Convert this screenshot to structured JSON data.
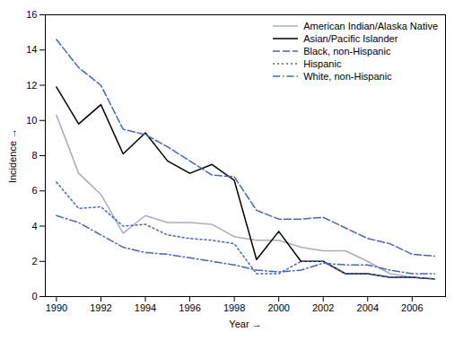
{
  "chart_data": {
    "type": "line",
    "x": [
      1990,
      1991,
      1992,
      1993,
      1994,
      1995,
      1996,
      1997,
      1998,
      1999,
      2000,
      2001,
      2002,
      2003,
      2004,
      2005,
      2006,
      2007
    ],
    "series": [
      {
        "name": "American Indian/Alaska Native",
        "color": "#aaaacc",
        "line_style": "solid",
        "values": [
          10.3,
          7.0,
          5.8,
          3.6,
          4.6,
          4.2,
          4.2,
          4.1,
          3.4,
          3.2,
          3.2,
          2.8,
          2.6,
          2.6,
          2.0,
          1.3,
          1.1,
          1.0
        ]
      },
      {
        "name": "Asian/Pacific Islander",
        "color": "#000000",
        "line_style": "solid",
        "values": [
          11.9,
          9.8,
          10.9,
          8.1,
          9.3,
          7.7,
          7.0,
          7.5,
          6.6,
          2.1,
          3.7,
          2.0,
          2.0,
          1.3,
          1.3,
          1.1,
          1.1,
          1.0
        ]
      },
      {
        "name": "Black, non-Hispanic",
        "color": "#4466bb",
        "line_style": "dashed",
        "values": [
          14.6,
          13.0,
          12.0,
          9.5,
          9.2,
          8.5,
          7.7,
          6.9,
          6.8,
          4.9,
          4.4,
          4.4,
          4.5,
          3.9,
          3.3,
          3.0,
          2.4,
          2.3
        ]
      },
      {
        "name": "Hispanic",
        "color": "#4466bb",
        "line_style": "dotted",
        "values": [
          6.5,
          5.0,
          5.1,
          4.0,
          4.1,
          3.5,
          3.3,
          3.2,
          3.0,
          1.3,
          1.3,
          2.0,
          2.0,
          1.3,
          1.3,
          1.1,
          1.1,
          1.0
        ]
      },
      {
        "name": "White, non-Hispanic",
        "color": "#4466bb",
        "line_style": "dashdot",
        "values": [
          4.6,
          4.2,
          3.5,
          2.8,
          2.5,
          2.4,
          2.2,
          2.0,
          1.8,
          1.5,
          1.4,
          1.5,
          1.9,
          1.8,
          1.8,
          1.5,
          1.3,
          1.3
        ]
      }
    ],
    "xlabel": "Year",
    "ylabel": "Incidence",
    "xlim": [
      1989.5,
      2007.5
    ],
    "ylim": [
      0,
      16
    ],
    "xticks": [
      1990,
      1992,
      1994,
      1996,
      1998,
      2000,
      2002,
      2004,
      2006
    ],
    "yticks": [
      0,
      2,
      4,
      6,
      8,
      10,
      12,
      14,
      16
    ],
    "grid": false,
    "legend": "upper right"
  }
}
